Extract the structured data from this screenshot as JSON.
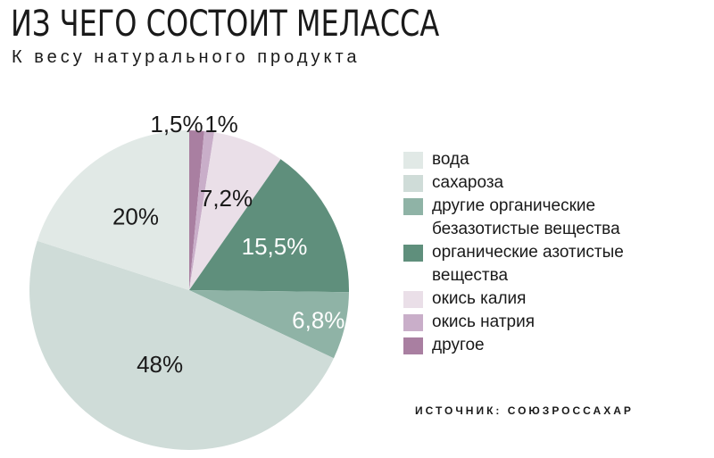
{
  "header": {
    "title": "ИЗ ЧЕГО СОСТОИТ МЕЛАССА",
    "subtitle": "К весу натурального продукта"
  },
  "source": "ИСТОЧНИК: СОЮЗРОССАХАР",
  "chart_data": {
    "type": "pie",
    "title": "ИЗ ЧЕГО СОСТОИТ МЕЛАССА",
    "subtitle": "К весу натурального продукта",
    "legend_position": "right",
    "slices": [
      {
        "label": "другое",
        "value": 1.5,
        "display": "1,5%",
        "color": "#a97fa1"
      },
      {
        "label": "окись натрия",
        "value": 1,
        "display": "1%",
        "color": "#c9aec9"
      },
      {
        "label": "окись калия",
        "value": 7.2,
        "display": "7,2%",
        "color": "#eadfe8"
      },
      {
        "label": "органические азотистые вещества",
        "value": 15.5,
        "display": "15,5%",
        "color": "#5f8f7c"
      },
      {
        "label": "другие органические безазотистые вещества",
        "value": 6.8,
        "display": "6,8%",
        "color": "#8fb3a6"
      },
      {
        "label": "сахароза",
        "value": 48,
        "display": "48%",
        "color": "#cfdcd8"
      },
      {
        "label": "вода",
        "value": 20,
        "display": "20%",
        "color": "#e1e9e6"
      }
    ]
  },
  "legend": [
    {
      "lines": [
        "вода"
      ],
      "color": "#e1e9e6"
    },
    {
      "lines": [
        "сахароза"
      ],
      "color": "#cfdcd8"
    },
    {
      "lines": [
        "другие органические",
        "безазотистые вещества"
      ],
      "color": "#8fb3a6"
    },
    {
      "lines": [
        "органические азотистые",
        "вещества"
      ],
      "color": "#5f8f7c"
    },
    {
      "lines": [
        "окись калия"
      ],
      "color": "#eadfe8"
    },
    {
      "lines": [
        "окись натрия"
      ],
      "color": "#c9aec9"
    },
    {
      "lines": [
        "другое"
      ],
      "color": "#a97fa1"
    }
  ]
}
